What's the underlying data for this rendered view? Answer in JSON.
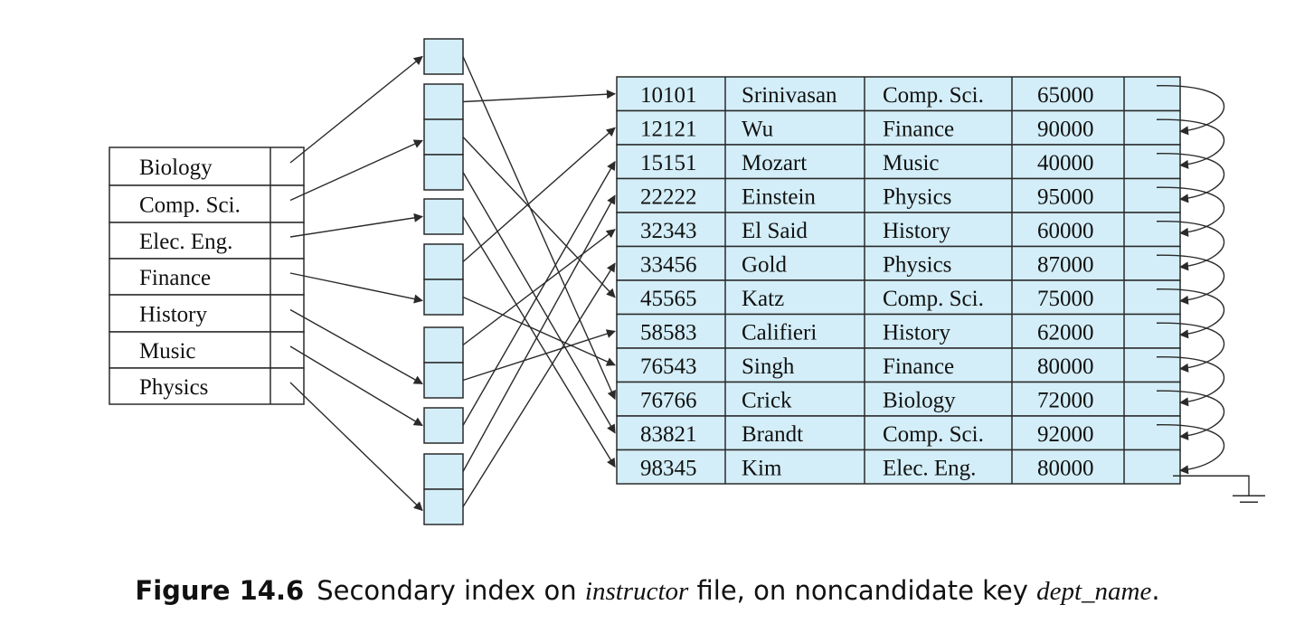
{
  "colors": {
    "cell_fill": "#d3eef8",
    "stroke": "#2a2a2a"
  },
  "departments": [
    "Biology",
    "Comp. Sci.",
    "Elec. Eng.",
    "Finance",
    "History",
    "Music",
    "Physics"
  ],
  "buckets": [
    {
      "dept": "Biology",
      "slots": 1
    },
    {
      "dept": "Comp. Sci.",
      "slots": 3
    },
    {
      "dept": "Elec. Eng.",
      "slots": 1
    },
    {
      "dept": "Finance",
      "slots": 2
    },
    {
      "dept": "History",
      "slots": 2
    },
    {
      "dept": "Music",
      "slots": 1
    },
    {
      "dept": "Physics",
      "slots": 2
    }
  ],
  "records": [
    {
      "id": "10101",
      "name": "Srinivasan",
      "dept": "Comp. Sci.",
      "salary": "65000"
    },
    {
      "id": "12121",
      "name": "Wu",
      "dept": "Finance",
      "salary": "90000"
    },
    {
      "id": "15151",
      "name": "Mozart",
      "dept": "Music",
      "salary": "40000"
    },
    {
      "id": "22222",
      "name": "Einstein",
      "dept": "Physics",
      "salary": "95000"
    },
    {
      "id": "32343",
      "name": "El Said",
      "dept": "History",
      "salary": "60000"
    },
    {
      "id": "33456",
      "name": "Gold",
      "dept": "Physics",
      "salary": "87000"
    },
    {
      "id": "45565",
      "name": "Katz",
      "dept": "Comp. Sci.",
      "salary": "75000"
    },
    {
      "id": "58583",
      "name": "Califieri",
      "dept": "History",
      "salary": "62000"
    },
    {
      "id": "76543",
      "name": "Singh",
      "dept": "Finance",
      "salary": "80000"
    },
    {
      "id": "76766",
      "name": "Crick",
      "dept": "Biology",
      "salary": "72000"
    },
    {
      "id": "83821",
      "name": "Brandt",
      "dept": "Comp. Sci.",
      "salary": "92000"
    },
    {
      "id": "98345",
      "name": "Kim",
      "dept": "Elec. Eng.",
      "salary": "80000"
    }
  ],
  "caption": {
    "label": "Figure 14.6",
    "text_before": "Secondary index on ",
    "emph_1": "instructor",
    "text_middle": " file, on noncandidate key ",
    "emph_2": "dept_name",
    "text_after": "."
  }
}
